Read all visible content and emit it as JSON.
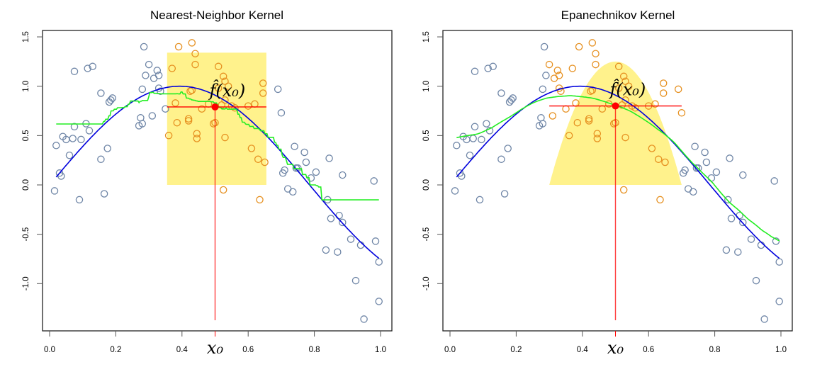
{
  "chart_data": [
    {
      "type": "scatter",
      "title": "Nearest-Neighbor Kernel",
      "kernel": "nearest-neighbor",
      "xlabel": "",
      "ylabel": "",
      "xlim": [
        0.0,
        1.0
      ],
      "ylim": [
        -1.4,
        1.5
      ],
      "xticks": [
        "0.0",
        "0.2",
        "0.4",
        "0.6",
        "0.8",
        "1.0"
      ],
      "xtick_values": [
        0.0,
        0.2,
        0.4,
        0.6,
        0.8,
        1.0
      ],
      "yticks": [
        "-1.0",
        "-0.5",
        "0.0",
        "0.5",
        "1.0",
        "1.5"
      ],
      "ytick_values": [
        -1.0,
        -0.5,
        0.0,
        0.5,
        1.0,
        1.5
      ],
      "x0": 0.5,
      "fhat_x0": 0.79,
      "window": [
        0.355,
        0.655
      ],
      "window_height": 1.34,
      "annotation": "f̂(x₀)",
      "x0_label": "x₀"
    },
    {
      "type": "scatter",
      "title": "Epanechnikov Kernel",
      "kernel": "epanechnikov",
      "xlabel": "",
      "ylabel": "",
      "xlim": [
        0.0,
        1.0
      ],
      "ylim": [
        -1.4,
        1.5
      ],
      "xticks": [
        "0.0",
        "0.2",
        "0.4",
        "0.6",
        "0.8",
        "1.0"
      ],
      "xtick_values": [
        0.0,
        0.2,
        0.4,
        0.6,
        0.8,
        1.0
      ],
      "yticks": [
        "-1.0",
        "-0.5",
        "0.0",
        "0.5",
        "1.0",
        "1.5"
      ],
      "ytick_values": [
        -1.0,
        -0.5,
        0.0,
        0.5,
        1.0,
        1.5
      ],
      "x0": 0.5,
      "fhat_x0": 0.8,
      "window": [
        0.3,
        0.7
      ],
      "window_height": 1.25,
      "annotation": "f̂(x₀)",
      "x0_label": "x₀"
    }
  ],
  "points": [
    [
      0.02,
      0.4
    ],
    [
      0.03,
      0.12
    ],
    [
      0.035,
      0.09
    ],
    [
      0.04,
      0.49
    ],
    [
      0.05,
      0.46
    ],
    [
      0.06,
      0.3
    ],
    [
      0.07,
      0.47
    ],
    [
      0.075,
      0.59
    ],
    [
      0.075,
      1.15
    ],
    [
      0.09,
      -0.15
    ],
    [
      0.095,
      0.46
    ],
    [
      0.11,
      0.62
    ],
    [
      0.115,
      1.18
    ],
    [
      0.12,
      0.55
    ],
    [
      0.13,
      1.2
    ],
    [
      0.155,
      0.26
    ],
    [
      0.155,
      0.93
    ],
    [
      0.165,
      -0.09
    ],
    [
      0.175,
      0.37
    ],
    [
      0.18,
      0.84
    ],
    [
      0.185,
      0.86
    ],
    [
      0.19,
      0.88
    ],
    [
      0.015,
      -0.06
    ],
    [
      0.27,
      0.6
    ],
    [
      0.275,
      0.68
    ],
    [
      0.28,
      0.62
    ],
    [
      0.28,
      0.97
    ],
    [
      0.285,
      1.4
    ],
    [
      0.29,
      1.11
    ],
    [
      0.3,
      1.22
    ],
    [
      0.31,
      0.7
    ],
    [
      0.315,
      1.08
    ],
    [
      0.325,
      1.16
    ],
    [
      0.33,
      0.98
    ],
    [
      0.33,
      1.11
    ],
    [
      0.335,
      0.95
    ],
    [
      0.35,
      0.77
    ],
    [
      0.36,
      0.5
    ],
    [
      0.37,
      1.18
    ],
    [
      0.38,
      0.83
    ],
    [
      0.385,
      0.63
    ],
    [
      0.39,
      1.4
    ],
    [
      0.42,
      0.65
    ],
    [
      0.42,
      0.67
    ],
    [
      0.425,
      0.95
    ],
    [
      0.43,
      1.44
    ],
    [
      0.43,
      0.96
    ],
    [
      0.44,
      1.33
    ],
    [
      0.44,
      1.22
    ],
    [
      0.445,
      0.52
    ],
    [
      0.445,
      0.47
    ],
    [
      0.46,
      0.77
    ],
    [
      0.48,
      0.82
    ],
    [
      0.495,
      0.62
    ],
    [
      0.5,
      0.63
    ],
    [
      0.51,
      1.2
    ],
    [
      0.51,
      0.98
    ],
    [
      0.52,
      0.81
    ],
    [
      0.53,
      0.48
    ],
    [
      0.525,
      1.1
    ],
    [
      0.53,
      1.05
    ],
    [
      0.53,
      0.86
    ],
    [
      0.525,
      -0.05
    ],
    [
      0.54,
      1.0
    ],
    [
      0.55,
      0.8
    ],
    [
      0.56,
      0.78
    ],
    [
      0.6,
      0.8
    ],
    [
      0.61,
      0.37
    ],
    [
      0.62,
      0.82
    ],
    [
      0.63,
      0.26
    ],
    [
      0.645,
      0.93
    ],
    [
      0.645,
      1.03
    ],
    [
      0.65,
      0.23
    ],
    [
      0.635,
      -0.15
    ],
    [
      0.69,
      0.97
    ],
    [
      0.7,
      0.73
    ],
    [
      0.705,
      0.12
    ],
    [
      0.71,
      0.15
    ],
    [
      0.72,
      -0.04
    ],
    [
      0.735,
      -0.07
    ],
    [
      0.74,
      0.39
    ],
    [
      0.745,
      0.17
    ],
    [
      0.75,
      0.17
    ],
    [
      0.77,
      0.33
    ],
    [
      0.775,
      0.23
    ],
    [
      0.79,
      0.07
    ],
    [
      0.805,
      0.13
    ],
    [
      0.835,
      -0.66
    ],
    [
      0.84,
      -0.15
    ],
    [
      0.845,
      0.27
    ],
    [
      0.85,
      -0.34
    ],
    [
      0.87,
      -0.68
    ],
    [
      0.875,
      -0.31
    ],
    [
      0.885,
      0.1
    ],
    [
      0.885,
      -0.38
    ],
    [
      0.91,
      -0.55
    ],
    [
      0.925,
      -0.97
    ],
    [
      0.94,
      -0.61
    ],
    [
      0.95,
      -1.36
    ],
    [
      0.98,
      0.04
    ],
    [
      0.985,
      -0.57
    ],
    [
      0.995,
      -1.18
    ],
    [
      0.995,
      -0.78
    ]
  ],
  "true_curve": "sin(4x)",
  "colors": {
    "gray_points": "#6e85a6",
    "orange_points": "#e69020",
    "true_curve": "#0000dd",
    "fit_curve": "#22ee22",
    "highlight": "#ff0000",
    "window_fill": "#fff28c"
  }
}
